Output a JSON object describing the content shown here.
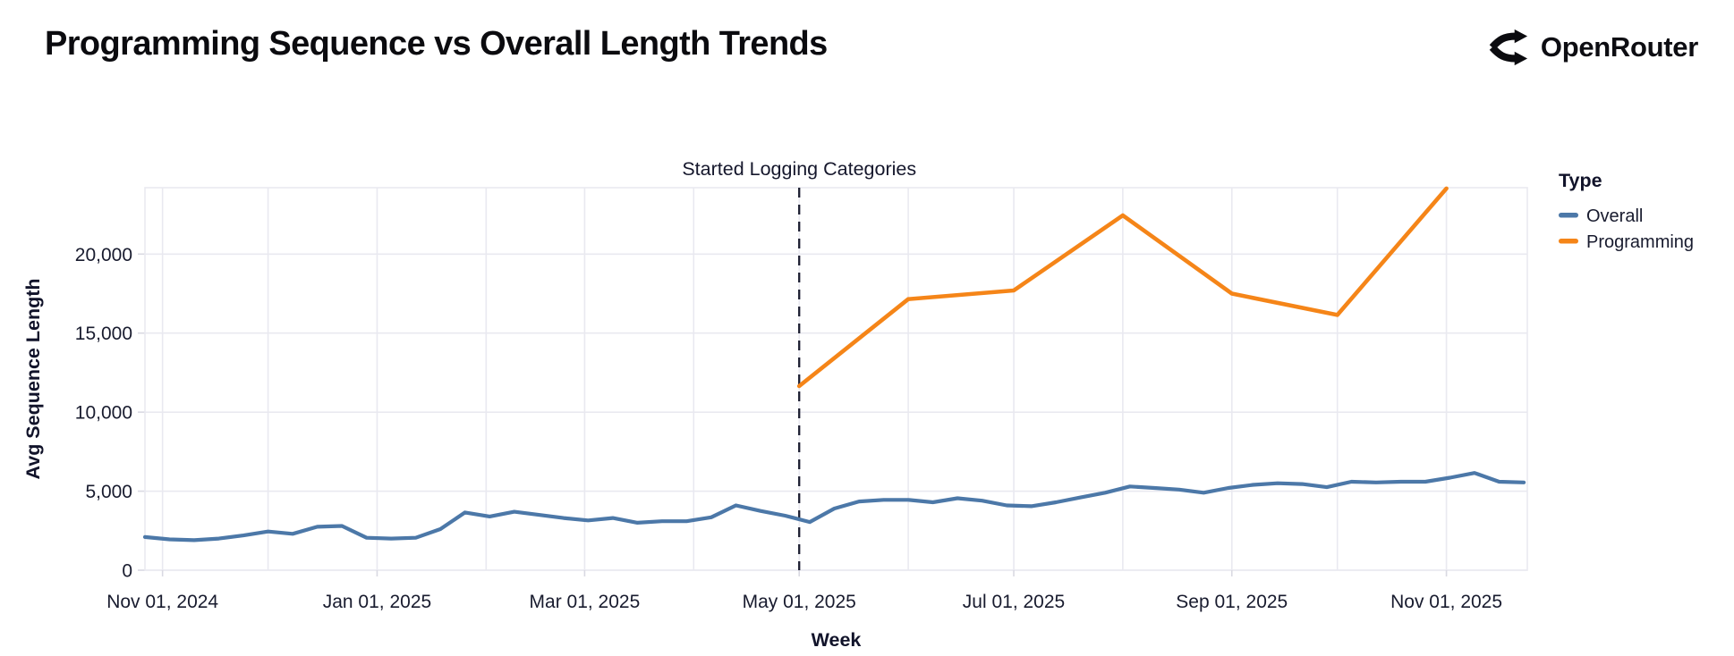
{
  "header": {
    "title": "Programming Sequence vs Overall Length Trends",
    "brand": {
      "name": "OpenRouter",
      "icon": "openrouter-merge-arrows-icon"
    }
  },
  "colors": {
    "overall_line": "#4C78A8",
    "programming_line": "#F58518",
    "gridline": "#e9e9f0",
    "text_dark": "#181b2e",
    "rule": "#1b1d30",
    "background": "#ffffff"
  },
  "chart_data": {
    "type": "line",
    "title": "Programming Sequence vs Overall Length Trends",
    "xlabel": "Week",
    "ylabel": "Avg Sequence Length",
    "ylim": [
      0,
      24200
    ],
    "y_ticks": [
      0,
      5000,
      10000,
      15000,
      20000
    ],
    "x_domain": [
      "2024-10-27",
      "2025-11-24"
    ],
    "grid": true,
    "x_ticks": [
      {
        "date": "2024-11-01",
        "label": "Nov 01, 2024"
      },
      {
        "date": "2025-01-01",
        "label": "Jan 01, 2025"
      },
      {
        "date": "2025-03-01",
        "label": "Mar 01, 2025"
      },
      {
        "date": "2025-05-01",
        "label": "May 01, 2025"
      },
      {
        "date": "2025-07-01",
        "label": "Jul 01, 2025"
      },
      {
        "date": "2025-09-01",
        "label": "Sep 01, 2025"
      },
      {
        "date": "2025-11-01",
        "label": "Nov 01, 2025"
      }
    ],
    "x_gridlines": [
      "2024-11-01",
      "2024-12-01",
      "2025-01-01",
      "2025-02-01",
      "2025-03-01",
      "2025-04-01",
      "2025-05-01",
      "2025-06-01",
      "2025-07-01",
      "2025-08-01",
      "2025-09-01",
      "2025-10-01",
      "2025-11-01"
    ],
    "annotation": {
      "date": "2025-05-01",
      "label": "Started Logging Categories",
      "style": "dashed-vertical-rule"
    },
    "legend": {
      "title": "Type",
      "position": "right",
      "items": [
        {
          "label": "Overall",
          "color": "#4C78A8"
        },
        {
          "label": "Programming",
          "color": "#F58518"
        }
      ]
    },
    "series": [
      {
        "name": "Overall",
        "color": "#4C78A8",
        "points": [
          [
            "2024-10-27",
            2100
          ],
          [
            "2024-11-03",
            1950
          ],
          [
            "2024-11-10",
            1900
          ],
          [
            "2024-11-17",
            2000
          ],
          [
            "2024-11-24",
            2200
          ],
          [
            "2024-12-01",
            2450
          ],
          [
            "2024-12-08",
            2300
          ],
          [
            "2024-12-15",
            2750
          ],
          [
            "2024-12-22",
            2800
          ],
          [
            "2024-12-29",
            2050
          ],
          [
            "2025-01-05",
            2000
          ],
          [
            "2025-01-12",
            2050
          ],
          [
            "2025-01-19",
            2600
          ],
          [
            "2025-01-26",
            3650
          ],
          [
            "2025-02-02",
            3400
          ],
          [
            "2025-02-09",
            3700
          ],
          [
            "2025-02-16",
            3500
          ],
          [
            "2025-02-23",
            3300
          ],
          [
            "2025-03-02",
            3150
          ],
          [
            "2025-03-09",
            3300
          ],
          [
            "2025-03-16",
            3000
          ],
          [
            "2025-03-23",
            3100
          ],
          [
            "2025-03-30",
            3100
          ],
          [
            "2025-04-06",
            3350
          ],
          [
            "2025-04-13",
            4100
          ],
          [
            "2025-04-20",
            3750
          ],
          [
            "2025-04-27",
            3450
          ],
          [
            "2025-05-04",
            3050
          ],
          [
            "2025-05-11",
            3900
          ],
          [
            "2025-05-18",
            4350
          ],
          [
            "2025-05-25",
            4450
          ],
          [
            "2025-06-01",
            4450
          ],
          [
            "2025-06-08",
            4300
          ],
          [
            "2025-06-15",
            4550
          ],
          [
            "2025-06-22",
            4400
          ],
          [
            "2025-06-29",
            4100
          ],
          [
            "2025-07-06",
            4050
          ],
          [
            "2025-07-13",
            4300
          ],
          [
            "2025-07-20",
            4600
          ],
          [
            "2025-07-27",
            4900
          ],
          [
            "2025-08-03",
            5300
          ],
          [
            "2025-08-10",
            5200
          ],
          [
            "2025-08-17",
            5100
          ],
          [
            "2025-08-24",
            4900
          ],
          [
            "2025-08-31",
            5200
          ],
          [
            "2025-09-07",
            5400
          ],
          [
            "2025-09-14",
            5500
          ],
          [
            "2025-09-21",
            5450
          ],
          [
            "2025-09-28",
            5250
          ],
          [
            "2025-10-05",
            5600
          ],
          [
            "2025-10-12",
            5550
          ],
          [
            "2025-10-19",
            5600
          ],
          [
            "2025-10-26",
            5600
          ],
          [
            "2025-11-02",
            5850
          ],
          [
            "2025-11-09",
            6150
          ],
          [
            "2025-11-16",
            5600
          ],
          [
            "2025-11-23",
            5550
          ]
        ]
      },
      {
        "name": "Programming",
        "color": "#F58518",
        "points": [
          [
            "2025-05-01",
            11650
          ],
          [
            "2025-06-01",
            17150
          ],
          [
            "2025-07-01",
            17700
          ],
          [
            "2025-08-01",
            22450
          ],
          [
            "2025-09-01",
            17500
          ],
          [
            "2025-10-01",
            16150
          ],
          [
            "2025-11-01",
            24150
          ]
        ]
      }
    ]
  }
}
